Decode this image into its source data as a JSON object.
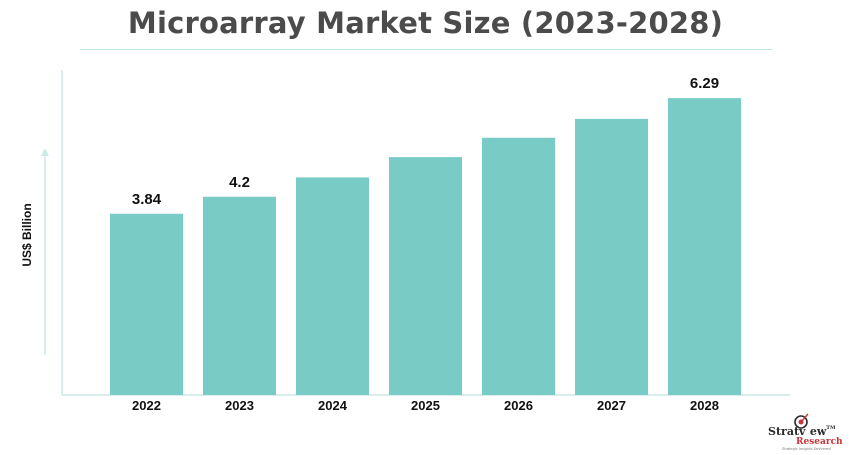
{
  "title": "Microarray Market Size (2023-2028)",
  "logo": {
    "name_left": "Stratv",
    "name_right": "ew",
    "tm": "TM",
    "sub": "Research",
    "tagline": "Strategic Insights Delivered"
  },
  "chart_data": {
    "type": "bar",
    "title": "Microarray Market Size (2023-2028)",
    "ylabel": "US$ Billion",
    "xlabel": "",
    "categories": [
      "2022",
      "2023",
      "2024",
      "2025",
      "2026",
      "2027",
      "2028"
    ],
    "values": [
      3.84,
      4.2,
      4.61,
      5.04,
      5.45,
      5.85,
      6.29
    ],
    "data_labels": [
      "3.84",
      "4.2",
      "",
      "",
      "",
      "",
      "6.29"
    ],
    "ylim": [
      0,
      7
    ],
    "grid": false,
    "bar_color": "#79cbc6",
    "axis_color": "#cbe9e6"
  },
  "colors": {
    "title": "#4b4b4b",
    "bar": "#79cbc6",
    "accent": "#c8343a"
  }
}
